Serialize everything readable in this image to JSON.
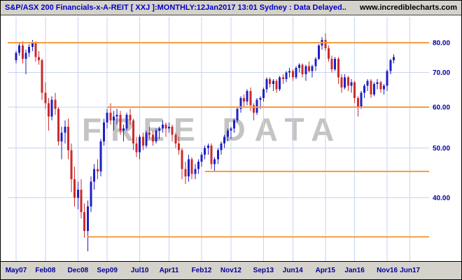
{
  "header": {
    "title": "S&P/ASX 200 Financials-x-A-REIT [ XXJ ]:MONTHLY:12Jan2017 13:01 Sydney : Data Delayed..",
    "website": "www.incrediblecharts.com"
  },
  "watermark": "FREE DATA",
  "colors": {
    "up_candle": "#1f1fc8",
    "down_candle": "#cc2a2a",
    "support_line": "#f49b42",
    "gridline": "#c9d2f0",
    "axis_label": "#00009c",
    "title_text": "#0000c8",
    "website_text": "#000000",
    "watermark_text": "#c4c4c4",
    "chrome_bg": "#d5d2cb",
    "plot_bg": "#ffffff"
  },
  "chart_data": {
    "type": "candlestick",
    "title": "S&P/ASX 200 Financials-x-A-REIT [XXJ]",
    "timeframe": "MONTHLY",
    "scale": "logarithmic",
    "start_month": "May 2007",
    "ylim": [
      30,
      86
    ],
    "grid": true,
    "y_ticks": [
      {
        "price": 80,
        "label": "80.00"
      },
      {
        "price": 70,
        "label": "70.00"
      },
      {
        "price": 60,
        "label": "60.00"
      },
      {
        "price": 50,
        "label": "50.00"
      },
      {
        "price": 40,
        "label": "40.00"
      }
    ],
    "x_ticks": [
      {
        "month": 0,
        "label": "May07"
      },
      {
        "month": 9,
        "label": "Feb08"
      },
      {
        "month": 19,
        "label": "Dec08"
      },
      {
        "month": 28,
        "label": "Sep09"
      },
      {
        "month": 38,
        "label": "Jul10"
      },
      {
        "month": 47,
        "label": "Apr11"
      },
      {
        "month": 57,
        "label": "Feb12"
      },
      {
        "month": 66,
        "label": "Nov12"
      },
      {
        "month": 76,
        "label": "Sep13"
      },
      {
        "month": 85,
        "label": "Jun14"
      },
      {
        "month": 95,
        "label": "Apr15"
      },
      {
        "month": 104,
        "label": "Jan16"
      },
      {
        "month": 114,
        "label": "Nov16"
      },
      {
        "month": 121,
        "label": "Jun17"
      }
    ],
    "support_resistance": [
      {
        "price": 80,
        "from_month": -3,
        "to_month": 127
      },
      {
        "price": 60,
        "from_month": 28,
        "to_month": 127
      },
      {
        "price": 45,
        "from_month": 58,
        "to_month": 127
      },
      {
        "price": 33.6,
        "from_month": 22,
        "to_month": 127
      }
    ],
    "candles_ohlc": [
      [
        74,
        77,
        73,
        76.5
      ],
      [
        76.5,
        80,
        75.5,
        79
      ],
      [
        79,
        80.5,
        73,
        74.5
      ],
      [
        74.5,
        77.5,
        69.5,
        76.5
      ],
      [
        76.5,
        79.5,
        75,
        78.5
      ],
      [
        78.5,
        81,
        77,
        80
      ],
      [
        80,
        80.5,
        73.5,
        75
      ],
      [
        75,
        77,
        72.5,
        74
      ],
      [
        74,
        74.5,
        62,
        64
      ],
      [
        64,
        67,
        59.5,
        61
      ],
      [
        61,
        62.5,
        54,
        57.5
      ],
      [
        57.5,
        63,
        56.5,
        62
      ],
      [
        62,
        64,
        58,
        59.5
      ],
      [
        59.5,
        60,
        50.5,
        51.5
      ],
      [
        51.5,
        55,
        47.5,
        53.5
      ],
      [
        53.5,
        56.5,
        51,
        55
      ],
      [
        55,
        57,
        47.5,
        49.5
      ],
      [
        49.5,
        51,
        41,
        43.5
      ],
      [
        43.5,
        46,
        38.5,
        40
      ],
      [
        40,
        43,
        38,
        41.5
      ],
      [
        41.5,
        43.5,
        36.5,
        37.5
      ],
      [
        37.5,
        39,
        33.5,
        34.5
      ],
      [
        34.5,
        39.5,
        31.5,
        38.5
      ],
      [
        38.5,
        44,
        37.5,
        43
      ],
      [
        43,
        46.5,
        41.5,
        45.5
      ],
      [
        45.5,
        47.5,
        43.5,
        45
      ],
      [
        45,
        52,
        44,
        51.5
      ],
      [
        51.5,
        57,
        50.5,
        56
      ],
      [
        56,
        59.5,
        54.5,
        58.5
      ],
      [
        58.5,
        61,
        55.5,
        56.5
      ],
      [
        56.5,
        59,
        54,
        57.5
      ],
      [
        57.5,
        59.5,
        55.5,
        58
      ],
      [
        58,
        59,
        53,
        54
      ],
      [
        54,
        55.5,
        51.5,
        54.5
      ],
      [
        54.5,
        58.5,
        54,
        58
      ],
      [
        58,
        59.5,
        55.5,
        56.5
      ],
      [
        56.5,
        57,
        49.5,
        51
      ],
      [
        51,
        52.5,
        48,
        49
      ],
      [
        49,
        53,
        47.5,
        52.5
      ],
      [
        52.5,
        53.5,
        49.5,
        50.5
      ],
      [
        50.5,
        54,
        50,
        53.5
      ],
      [
        53.5,
        55,
        52,
        53
      ],
      [
        53,
        54,
        50.5,
        51.5
      ],
      [
        51.5,
        54.5,
        51,
        54
      ],
      [
        54,
        55,
        52,
        54.5
      ],
      [
        54.5,
        56.5,
        53.5,
        55.5
      ],
      [
        55.5,
        56,
        52.5,
        54.5
      ],
      [
        54.5,
        56,
        53.5,
        55
      ],
      [
        55,
        55.5,
        51.5,
        53
      ],
      [
        53,
        53.5,
        50,
        51
      ],
      [
        51,
        52.5,
        48.5,
        49.5
      ],
      [
        49.5,
        50,
        43.5,
        45.5
      ],
      [
        45.5,
        47,
        42.5,
        44
      ],
      [
        44,
        48.5,
        43,
        47.5
      ],
      [
        47.5,
        48,
        43.5,
        44.5
      ],
      [
        44.5,
        46.5,
        43.5,
        45.5
      ],
      [
        45.5,
        47.5,
        44.5,
        47
      ],
      [
        47,
        49,
        46,
        48.5
      ],
      [
        48.5,
        50.5,
        47.5,
        50
      ],
      [
        50,
        51,
        48.5,
        50.5
      ],
      [
        50.5,
        51,
        45.5,
        46.5
      ],
      [
        46.5,
        48,
        45,
        47.5
      ],
      [
        47.5,
        50,
        46.5,
        49.5
      ],
      [
        49.5,
        51.5,
        48.5,
        51
      ],
      [
        51,
        53,
        50,
        52.5
      ],
      [
        52.5,
        54.5,
        51.5,
        54
      ],
      [
        54,
        55,
        52,
        54.5
      ],
      [
        54.5,
        57,
        53.5,
        56.5
      ],
      [
        56.5,
        60,
        56,
        59.5
      ],
      [
        59.5,
        63,
        58.5,
        62.5
      ],
      [
        62.5,
        63.5,
        60,
        61.5
      ],
      [
        61.5,
        65,
        60.5,
        64.5
      ],
      [
        64.5,
        65.5,
        59,
        60.5
      ],
      [
        60.5,
        61,
        56.5,
        58.5
      ],
      [
        58.5,
        62.5,
        58,
        62
      ],
      [
        62,
        63,
        59.5,
        62.5
      ],
      [
        62.5,
        65.5,
        61.5,
        65
      ],
      [
        65,
        68.5,
        64,
        68
      ],
      [
        68,
        68.5,
        65.5,
        66.5
      ],
      [
        66.5,
        68,
        64.5,
        67.5
      ],
      [
        67.5,
        68,
        64,
        65
      ],
      [
        65,
        69,
        64.5,
        68.5
      ],
      [
        68.5,
        69.5,
        66.5,
        68
      ],
      [
        68,
        70.5,
        67,
        70
      ],
      [
        70,
        71.5,
        68.5,
        70.5
      ],
      [
        70.5,
        71,
        67.5,
        68.5
      ],
      [
        68.5,
        72,
        68,
        71.5
      ],
      [
        71.5,
        73,
        70,
        72.5
      ],
      [
        72.5,
        73,
        68.5,
        69.5
      ],
      [
        69.5,
        72.5,
        67.5,
        72
      ],
      [
        72,
        73.5,
        70,
        70.5
      ],
      [
        70.5,
        72.5,
        68.5,
        72
      ],
      [
        72,
        75,
        70.5,
        74.5
      ],
      [
        74.5,
        79.5,
        74,
        79
      ],
      [
        79,
        82,
        77.5,
        81
      ],
      [
        81,
        83.5,
        77,
        78
      ],
      [
        78,
        79,
        73.5,
        74.5
      ],
      [
        74.5,
        75.5,
        70,
        71
      ],
      [
        71,
        75,
        70.5,
        74.5
      ],
      [
        74.5,
        75,
        66.5,
        68.5
      ],
      [
        68.5,
        69.5,
        64,
        65.5
      ],
      [
        65.5,
        69.5,
        65,
        68.5
      ],
      [
        68.5,
        69,
        64.5,
        66
      ],
      [
        66,
        68,
        64,
        67
      ],
      [
        67,
        67.5,
        61,
        62.5
      ],
      [
        62.5,
        63,
        57.5,
        60
      ],
      [
        60,
        64.5,
        59.5,
        64
      ],
      [
        64,
        66.5,
        62.5,
        66
      ],
      [
        66,
        68,
        64.5,
        67.5
      ],
      [
        67.5,
        68,
        62.5,
        63.5
      ],
      [
        63.5,
        67,
        63,
        66.5
      ],
      [
        66.5,
        68,
        65,
        67
      ],
      [
        67,
        67.5,
        64,
        65
      ],
      [
        65,
        66.5,
        63.5,
        66
      ],
      [
        66,
        71,
        64.5,
        70.5
      ],
      [
        70.5,
        74.5,
        69.5,
        74
      ],
      [
        74,
        76,
        73,
        75
      ]
    ]
  }
}
